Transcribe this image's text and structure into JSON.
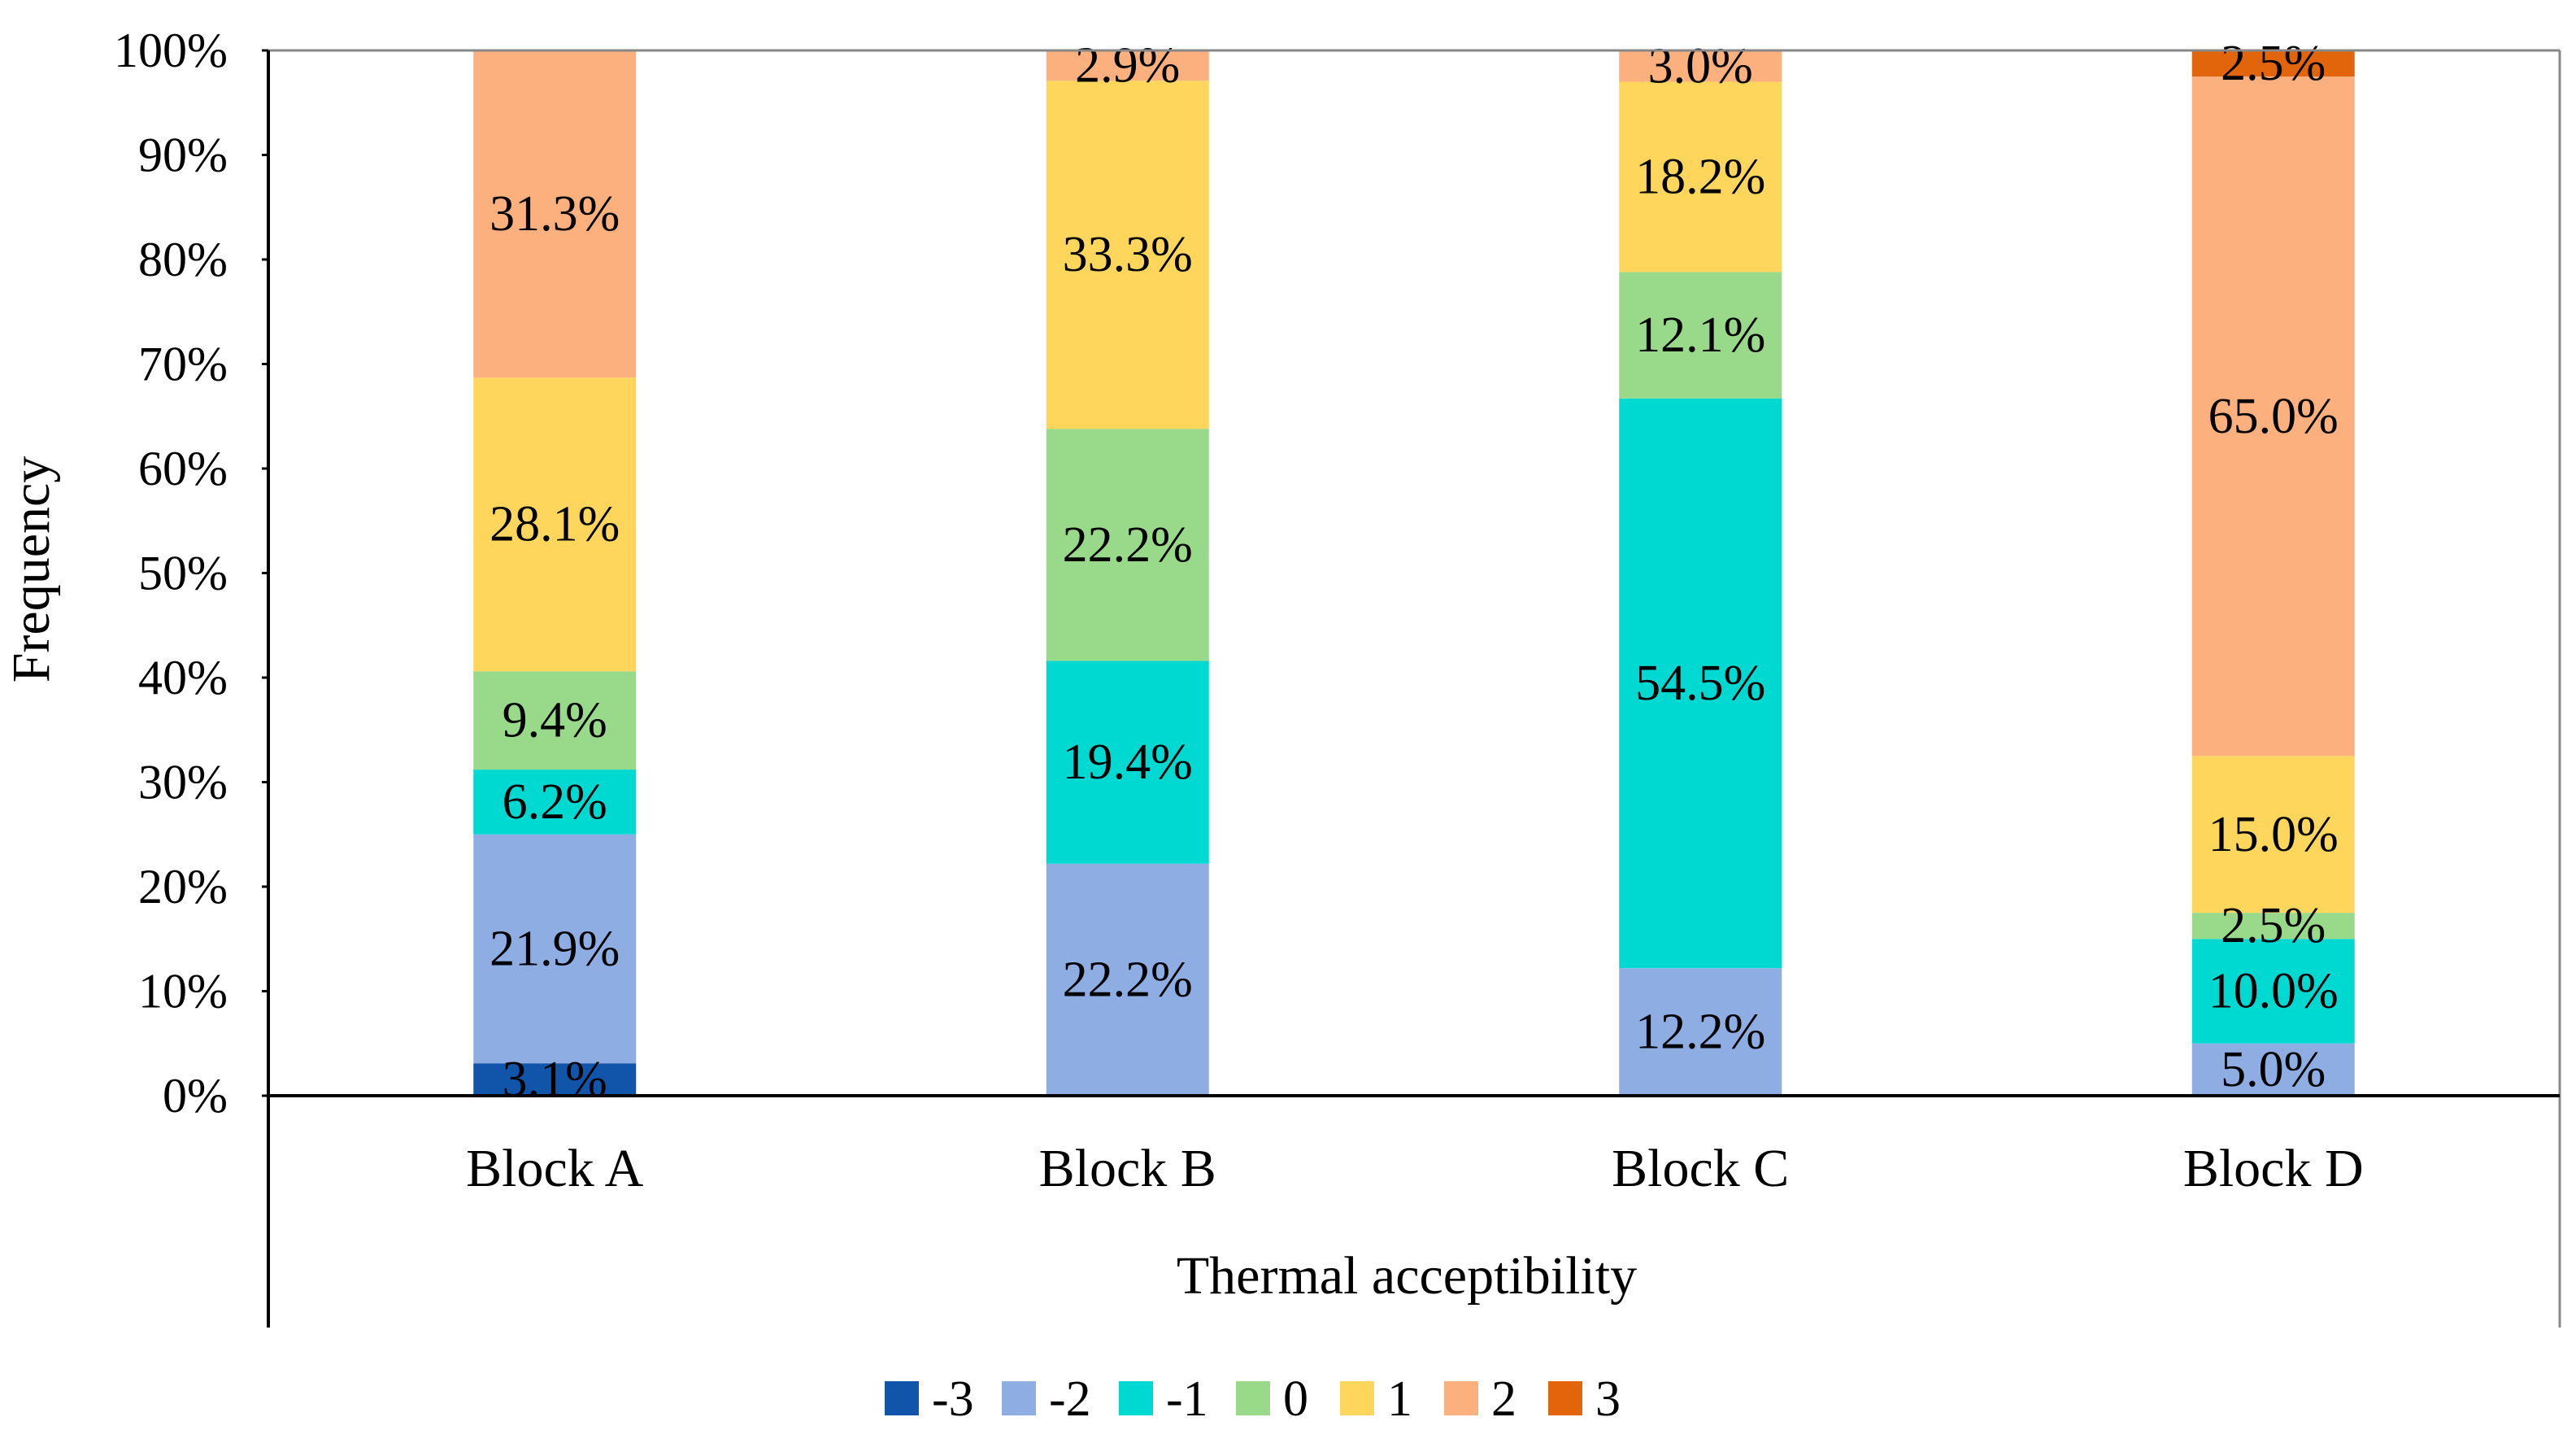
{
  "chart_data": {
    "type": "bar",
    "stacked": true,
    "title": "",
    "xlabel": "Thermal acceptibility",
    "ylabel": "Frequency",
    "ylim": [
      0,
      100
    ],
    "y_ticks": [
      "0%",
      "10%",
      "20%",
      "30%",
      "40%",
      "50%",
      "60%",
      "70%",
      "80%",
      "90%",
      "100%"
    ],
    "categories": [
      "Block A",
      "Block B",
      "Block C",
      "Block D"
    ],
    "legend_position": "bottom",
    "series": [
      {
        "name": "-3",
        "color": "#1155AA",
        "values": [
          3.1,
          0,
          0,
          0
        ],
        "labels": [
          "3.1%",
          "",
          "",
          ""
        ]
      },
      {
        "name": "-2",
        "color": "#8EADE3",
        "values": [
          21.9,
          22.2,
          12.2,
          5.0
        ],
        "labels": [
          "21.9%",
          "22.2%",
          "12.2%",
          "5.0%"
        ]
      },
      {
        "name": "-1",
        "color": "#00D9D2",
        "values": [
          6.2,
          19.4,
          54.5,
          10.0
        ],
        "labels": [
          "6.2%",
          "19.4%",
          "54.5%",
          "10.0%"
        ]
      },
      {
        "name": "0",
        "color": "#99D98A",
        "values": [
          9.4,
          22.2,
          12.1,
          2.5
        ],
        "labels": [
          "9.4%",
          "22.2%",
          "12.1%",
          "2.5%"
        ]
      },
      {
        "name": "1",
        "color": "#FFD65C",
        "values": [
          28.1,
          33.3,
          18.2,
          15.0
        ],
        "labels": [
          "28.1%",
          "33.3%",
          "18.2%",
          "15.0%"
        ]
      },
      {
        "name": "2",
        "color": "#FBB07E",
        "values": [
          31.3,
          2.9,
          3.0,
          65.0
        ],
        "labels": [
          "31.3%",
          "2.9%",
          "3.0%",
          "65.0%"
        ]
      },
      {
        "name": "3",
        "color": "#E2650C",
        "values": [
          0,
          0,
          0,
          2.5
        ],
        "labels": [
          "",
          "",
          "",
          "2.5%"
        ]
      }
    ]
  }
}
